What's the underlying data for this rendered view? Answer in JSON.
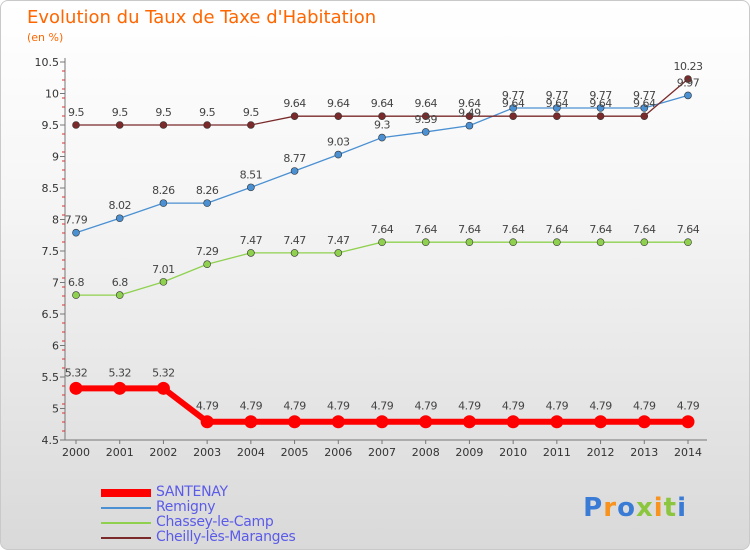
{
  "chart_data": {
    "type": "line",
    "title": "Evolution du Taux de Taxe d'Habitation",
    "subtitle": "(en %)",
    "categories": [
      "2000",
      "2001",
      "2002",
      "2003",
      "2004",
      "2005",
      "2006",
      "2007",
      "2008",
      "2009",
      "2010",
      "2011",
      "2012",
      "2013",
      "2014"
    ],
    "ylim": [
      4.5,
      10.5
    ],
    "yticks": [
      "4.5",
      "5",
      "5.5",
      "6",
      "6.5",
      "7",
      "7.5",
      "8",
      "8.5",
      "9",
      "9.5",
      "10",
      "10.5"
    ],
    "grid": false,
    "legend_position": "bottom-left",
    "series": [
      {
        "name": "SANTENAY",
        "color": "#ff0000",
        "values": [
          5.32,
          5.32,
          5.32,
          4.79,
          4.79,
          4.79,
          4.79,
          4.79,
          4.79,
          4.79,
          4.79,
          4.79,
          4.79,
          4.79,
          4.79
        ],
        "labels": [
          "5.32",
          "5.32",
          "5.32",
          "4.79",
          "4.79",
          "4.79",
          "4.79",
          "4.79",
          "4.79",
          "4.79",
          "4.79",
          "4.79",
          "4.79",
          "4.79",
          "4.79"
        ]
      },
      {
        "name": "Remigny",
        "color": "#4a90d2",
        "values": [
          7.79,
          8.02,
          8.26,
          8.26,
          8.51,
          8.77,
          9.03,
          9.3,
          9.39,
          9.49,
          9.77,
          9.77,
          9.77,
          9.77,
          9.97
        ],
        "labels": [
          "7.79",
          "8.02",
          "8.26",
          "8.26",
          "8.51",
          "8.77",
          "9.03",
          "9.3",
          "9.39",
          "9.49",
          "9.77",
          "9.77",
          "9.77",
          "9.77",
          "9.97"
        ]
      },
      {
        "name": "Chassey-le-Camp",
        "color": "#8fd14f",
        "values": [
          6.8,
          6.8,
          7.01,
          7.29,
          7.47,
          7.47,
          7.47,
          7.64,
          7.64,
          7.64,
          7.64,
          7.64,
          7.64,
          7.64,
          7.64
        ],
        "labels": [
          "6.8",
          "6.8",
          "7.01",
          "7.29",
          "7.47",
          "7.47",
          "7.47",
          "7.64",
          "7.64",
          "7.64",
          "7.64",
          "7.64",
          "7.64",
          "7.64",
          "7.64"
        ]
      },
      {
        "name": "Cheilly-lès-Maranges",
        "color": "#7a2a2a",
        "values": [
          9.5,
          9.5,
          9.5,
          9.5,
          9.5,
          9.64,
          9.64,
          9.64,
          9.64,
          9.64,
          9.64,
          9.64,
          9.64,
          9.64,
          10.23
        ],
        "labels": [
          "9.5",
          "9.5",
          "9.5",
          "9.5",
          "9.5",
          "9.64",
          "9.64",
          "9.64",
          "9.64",
          "9.64",
          "9.64",
          "9.64",
          "9.64",
          "9.64",
          "10.23"
        ]
      }
    ]
  },
  "logo": {
    "text": "Proxiti",
    "colors": [
      "#3a7bd5",
      "#f7931e",
      "#3a7bd5",
      "#8cc63f",
      "#f7931e",
      "#8cc63f",
      "#3a7bd5"
    ]
  }
}
